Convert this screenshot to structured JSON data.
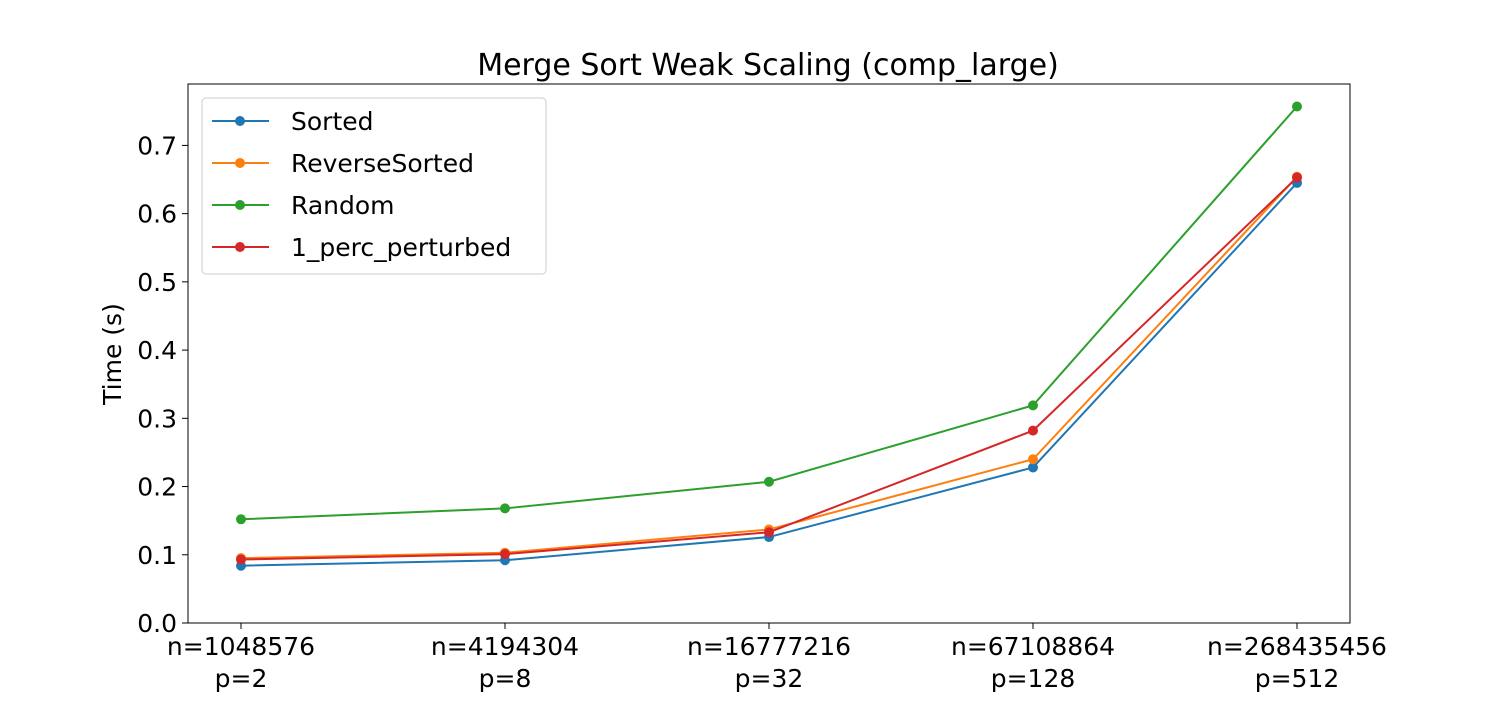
{
  "chart_data": {
    "type": "line",
    "title": "Merge Sort Weak Scaling (comp_large)",
    "xlabel": "",
    "ylabel": "Time (s)",
    "categories": [
      [
        "n=1048576",
        "p=2"
      ],
      [
        "n=4194304",
        "p=8"
      ],
      [
        "n=16777216",
        "p=32"
      ],
      [
        "n=67108864",
        "p=128"
      ],
      [
        "n=268435456",
        "p=512"
      ]
    ],
    "ylim": [
      0.0,
      0.79
    ],
    "yticks": [
      "0.0",
      "0.1",
      "0.2",
      "0.3",
      "0.4",
      "0.5",
      "0.6",
      "0.7"
    ],
    "grid": false,
    "legend_position": "top-left",
    "series": [
      {
        "name": "Sorted",
        "color": "#1f77b4",
        "values": [
          0.084,
          0.092,
          0.126,
          0.228,
          0.645
        ]
      },
      {
        "name": "ReverseSorted",
        "color": "#ff7f0e",
        "values": [
          0.095,
          0.103,
          0.137,
          0.24,
          0.654
        ]
      },
      {
        "name": "Random",
        "color": "#2ca02c",
        "values": [
          0.152,
          0.168,
          0.207,
          0.319,
          0.757
        ]
      },
      {
        "name": "1_perc_perturbed",
        "color": "#d62728",
        "values": [
          0.093,
          0.101,
          0.133,
          0.282,
          0.653
        ]
      }
    ]
  }
}
